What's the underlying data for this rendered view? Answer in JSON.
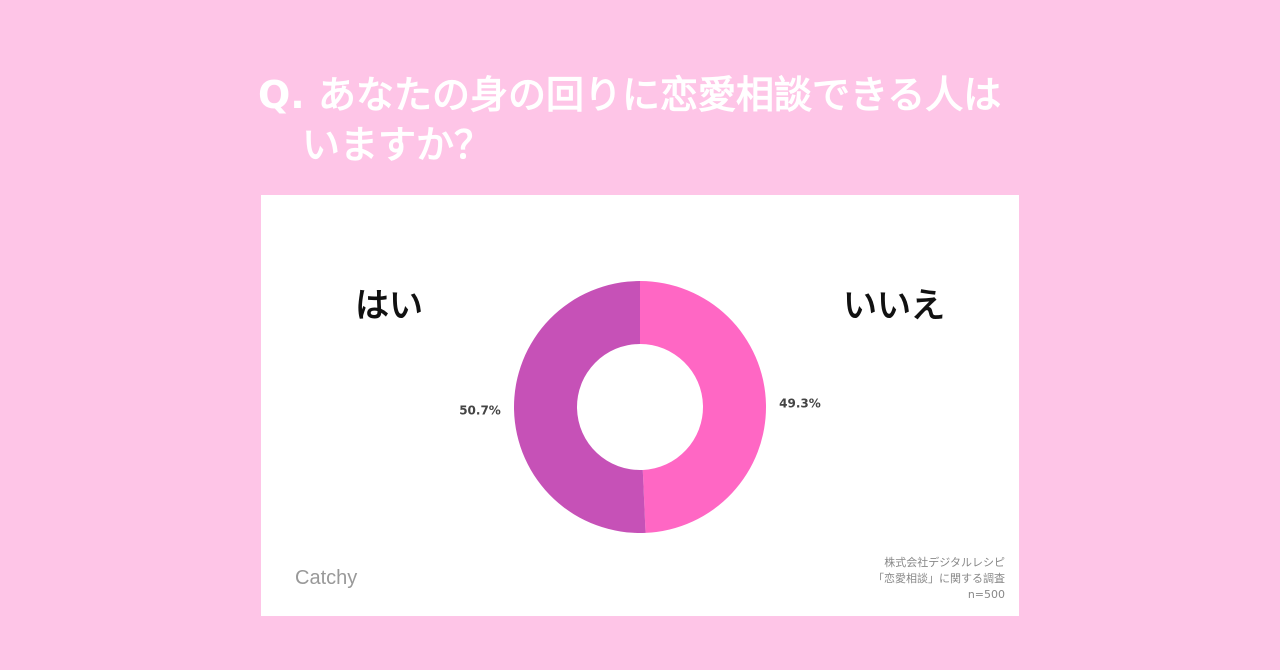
{
  "question": {
    "line1": "Q. あなたの身の回りに恋愛相談できる人は",
    "line2": "いますか？"
  },
  "chart_data": {
    "type": "pie",
    "categories": [
      "いいえ",
      "はい"
    ],
    "values": [
      49.3,
      50.7
    ],
    "data_labels": [
      "49.3%",
      "50.7%"
    ],
    "colors": [
      "#ff67c4",
      "#c651b7"
    ],
    "donut": true,
    "title": "",
    "legend": "labels above slices (はい left, いいえ right)"
  },
  "labels": {
    "yes": "はい",
    "no": "いいえ"
  },
  "brand": "Catchy",
  "source": {
    "line1": "株式会社デジタルレシピ",
    "line2": "「恋愛相談」に関する調査",
    "line3": "n=500"
  }
}
